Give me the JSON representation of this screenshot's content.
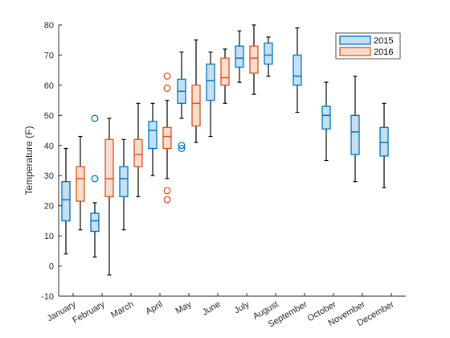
{
  "chart_data": {
    "type": "boxplot",
    "title": "",
    "xlabel": "",
    "ylabel": "Temperature (F)",
    "ylim": [
      -10,
      80
    ],
    "yticks": [
      -10,
      0,
      10,
      20,
      30,
      40,
      50,
      60,
      70,
      80
    ],
    "grid": false,
    "legend_position": "top-right",
    "categories": [
      "January",
      "February",
      "March",
      "April",
      "May",
      "June",
      "July",
      "August",
      "September",
      "October",
      "November",
      "December"
    ],
    "series": [
      {
        "name": "2015",
        "stroke": "#0072BD",
        "fill": "#C4E0F2",
        "boxes": [
          {
            "category": "January",
            "min": 4,
            "q1": 15,
            "median": 22,
            "q3": 28,
            "max": 39,
            "outliers": []
          },
          {
            "category": "February",
            "min": 3,
            "q1": 11.5,
            "median": 15,
            "q3": 17.5,
            "max": 21,
            "outliers": [
              29,
              49
            ]
          },
          {
            "category": "March",
            "min": 12,
            "q1": 23,
            "median": 29,
            "q3": 33,
            "max": 42,
            "outliers": []
          },
          {
            "category": "April",
            "min": 30,
            "q1": 39,
            "median": 45,
            "q3": 48,
            "max": 54,
            "outliers": []
          },
          {
            "category": "May",
            "min": 49,
            "q1": 54,
            "median": 58,
            "q3": 62,
            "max": 71,
            "outliers": [
              39,
              40
            ]
          },
          {
            "category": "June",
            "min": 43,
            "q1": 55,
            "median": 61.5,
            "q3": 67,
            "max": 71,
            "outliers": []
          },
          {
            "category": "July",
            "min": 61,
            "q1": 66,
            "median": 69,
            "q3": 73,
            "max": 78,
            "outliers": []
          },
          {
            "category": "August",
            "min": 63,
            "q1": 67,
            "median": 70,
            "q3": 74,
            "max": 76,
            "outliers": []
          },
          {
            "category": "September",
            "min": 51,
            "q1": 60,
            "median": 63,
            "q3": 70,
            "max": 79,
            "outliers": []
          },
          {
            "category": "October",
            "min": 35,
            "q1": 45.5,
            "median": 50,
            "q3": 53,
            "max": 61,
            "outliers": []
          },
          {
            "category": "November",
            "min": 28,
            "q1": 37,
            "median": 44.5,
            "q3": 50,
            "max": 63,
            "outliers": []
          },
          {
            "category": "December",
            "min": 26,
            "q1": 36.5,
            "median": 41,
            "q3": 46,
            "max": 54,
            "outliers": []
          }
        ]
      },
      {
        "name": "2016",
        "stroke": "#D95319",
        "fill": "#F9DCCE",
        "boxes": [
          {
            "category": "January",
            "min": 12,
            "q1": 21.5,
            "median": 29,
            "q3": 33,
            "max": 43,
            "outliers": []
          },
          {
            "category": "February",
            "min": -3,
            "q1": 23,
            "median": 29,
            "q3": 42,
            "max": 49,
            "outliers": []
          },
          {
            "category": "March",
            "min": 23,
            "q1": 33,
            "median": 37,
            "q3": 42,
            "max": 54,
            "outliers": []
          },
          {
            "category": "April",
            "min": 29,
            "q1": 39,
            "median": 43,
            "q3": 46,
            "max": 55,
            "outliers": [
              22,
              25,
              59,
              63
            ]
          },
          {
            "category": "May",
            "min": 41,
            "q1": 46.5,
            "median": 54,
            "q3": 60,
            "max": 75,
            "outliers": []
          },
          {
            "category": "June",
            "min": 54,
            "q1": 60,
            "median": 62.5,
            "q3": 69,
            "max": 72,
            "outliers": []
          },
          {
            "category": "July",
            "min": 57,
            "q1": 64,
            "median": 69,
            "q3": 73,
            "max": 80,
            "outliers": []
          }
        ]
      }
    ]
  }
}
